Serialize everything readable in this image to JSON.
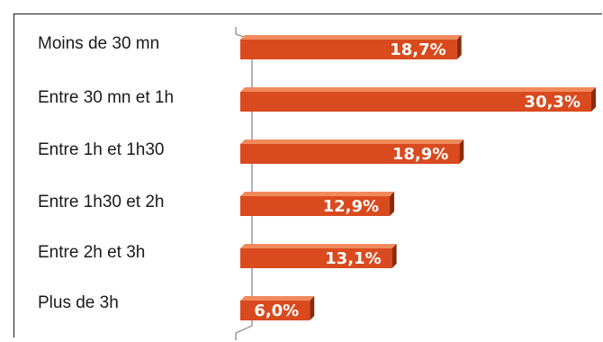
{
  "chart_data": {
    "type": "bar",
    "orientation": "horizontal",
    "categories": [
      "Moins de 30 mn",
      "Entre 30 mn et 1h",
      "Entre 1h et 1h30",
      "Entre 1h30 et 2h",
      "Entre 2h et 3h",
      "Plus de 3h"
    ],
    "values": [
      18.7,
      30.3,
      18.9,
      12.9,
      13.1,
      6.0
    ],
    "value_labels": [
      "18,7%",
      "30,3%",
      "18,9%",
      "12,9%",
      "13,1%",
      "6,0%"
    ],
    "unit": "%",
    "xlim": [
      0,
      30.3
    ],
    "grid": false,
    "legend": "none",
    "colors": {
      "bar_front": "#d94a1e",
      "bar_top": "#f08a5c",
      "bar_side": "#8c2a0c",
      "axis": "#9a9a9a"
    }
  }
}
